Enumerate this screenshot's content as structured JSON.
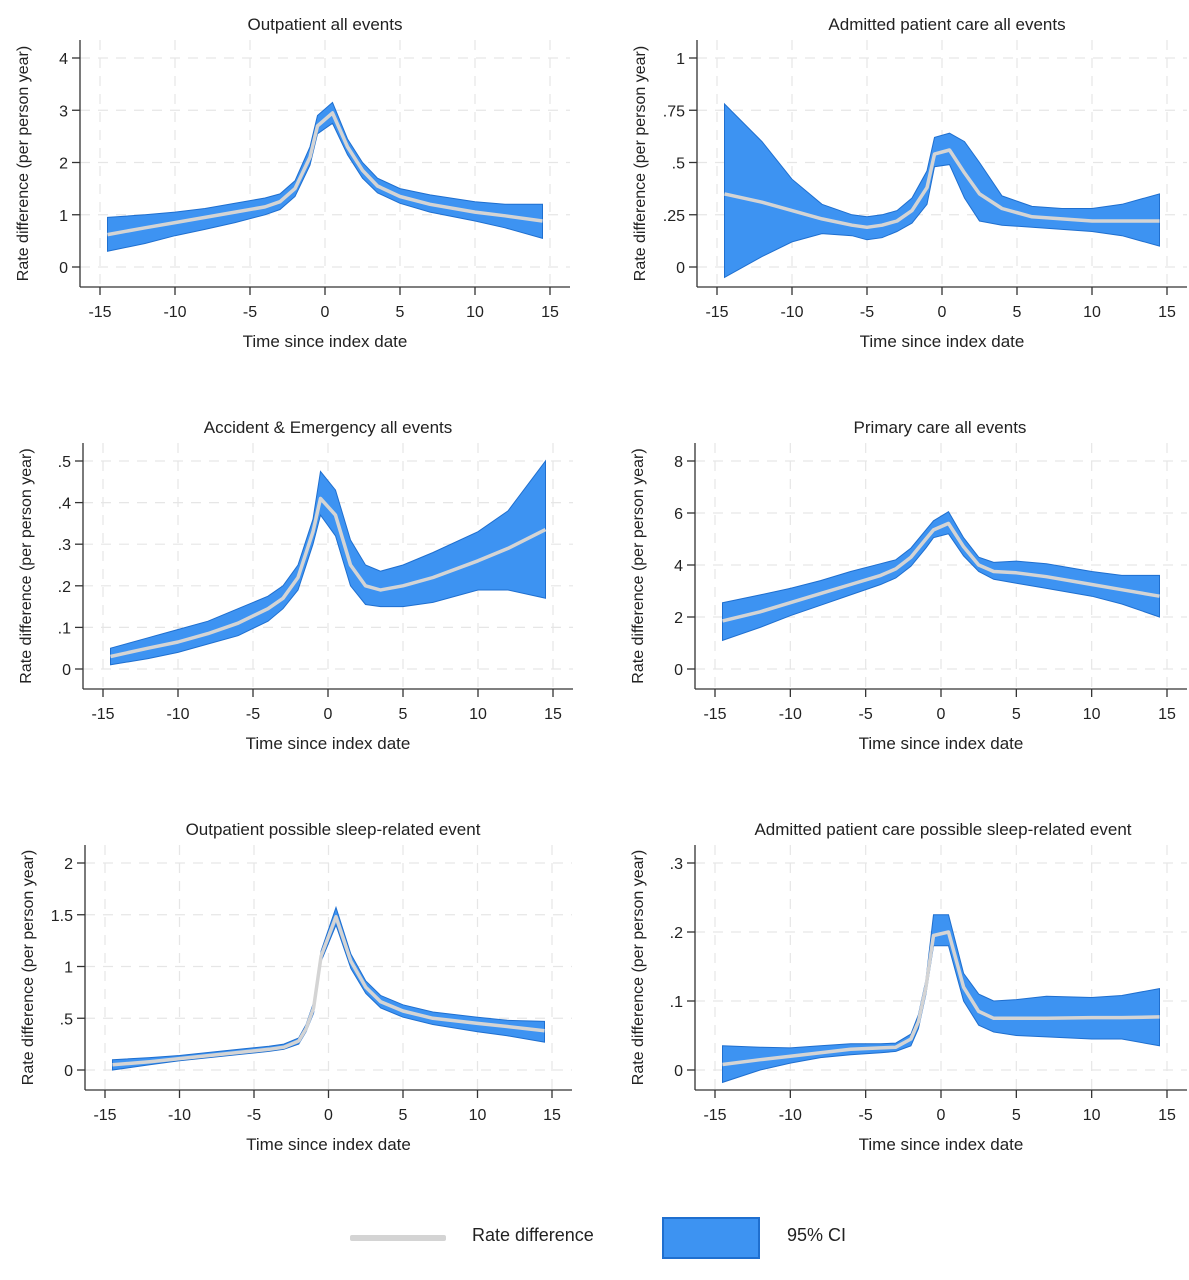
{
  "legend": {
    "line_label": "Rate difference",
    "band_label": "95% CI"
  },
  "colors": {
    "band": "#3d93f2",
    "band_edge": "#1f6fcf",
    "line": "#d4d4d4",
    "grid": "#e6e6e6"
  },
  "chart_data": [
    {
      "type": "area",
      "title": "Outpatient all events",
      "xlabel": "Time since index date",
      "ylabel": "Rate difference (per person year)",
      "xlim": [
        -15,
        15
      ],
      "ylim": [
        0,
        4
      ],
      "yticks": [
        0,
        1,
        2,
        3,
        4
      ],
      "ytick_labels": [
        "0",
        "1",
        "2",
        "3",
        "4"
      ],
      "xticks": [
        -15,
        -10,
        -5,
        0,
        5,
        10,
        15
      ],
      "xtick_labels": [
        "-15",
        "-10",
        "-5",
        "0",
        "5",
        "10",
        "15"
      ],
      "x": [
        -14.5,
        -12,
        -10,
        -8,
        -6,
        -4,
        -3,
        -2,
        -1,
        -0.5,
        0.5,
        1.5,
        2.5,
        3.5,
        5,
        7,
        10,
        12,
        14.5
      ],
      "y": [
        0.62,
        0.75,
        0.85,
        0.95,
        1.05,
        1.15,
        1.25,
        1.5,
        2.1,
        2.7,
        2.95,
        2.3,
        1.85,
        1.55,
        1.35,
        1.2,
        1.05,
        0.98,
        0.88
      ],
      "lower": [
        0.3,
        0.45,
        0.6,
        0.72,
        0.85,
        1.0,
        1.1,
        1.35,
        1.95,
        2.55,
        2.75,
        2.15,
        1.7,
        1.42,
        1.22,
        1.05,
        0.88,
        0.75,
        0.55
      ],
      "upper": [
        0.95,
        1.0,
        1.05,
        1.12,
        1.22,
        1.32,
        1.4,
        1.65,
        2.3,
        2.9,
        3.15,
        2.45,
        2.0,
        1.7,
        1.5,
        1.38,
        1.25,
        1.2,
        1.2
      ]
    },
    {
      "type": "area",
      "title": "Admitted patient care all events",
      "xlabel": "Time since index date",
      "ylabel": "Rate difference (per person year)",
      "xlim": [
        -15,
        15
      ],
      "ylim": [
        0,
        1
      ],
      "yticks": [
        0,
        0.25,
        0.5,
        0.75,
        1
      ],
      "ytick_labels": [
        "0",
        ".25",
        ".5",
        ".75",
        "1"
      ],
      "xticks": [
        -15,
        -10,
        -5,
        0,
        5,
        10,
        15
      ],
      "xtick_labels": [
        "-15",
        "-10",
        "-5",
        "0",
        "5",
        "10",
        "15"
      ],
      "x": [
        -14.5,
        -12,
        -10,
        -8,
        -6,
        -5,
        -4,
        -3,
        -2,
        -1,
        -0.5,
        0.5,
        1.5,
        2.5,
        4,
        6,
        8,
        10,
        12,
        14.5
      ],
      "y": [
        0.35,
        0.31,
        0.27,
        0.23,
        0.2,
        0.19,
        0.2,
        0.22,
        0.27,
        0.38,
        0.54,
        0.56,
        0.45,
        0.35,
        0.28,
        0.24,
        0.23,
        0.22,
        0.22,
        0.22
      ],
      "lower": [
        -0.05,
        0.05,
        0.12,
        0.16,
        0.15,
        0.13,
        0.14,
        0.17,
        0.21,
        0.3,
        0.48,
        0.49,
        0.33,
        0.22,
        0.2,
        0.19,
        0.18,
        0.17,
        0.15,
        0.1
      ],
      "upper": [
        0.78,
        0.6,
        0.42,
        0.3,
        0.25,
        0.24,
        0.25,
        0.27,
        0.33,
        0.46,
        0.62,
        0.64,
        0.6,
        0.5,
        0.34,
        0.29,
        0.28,
        0.28,
        0.3,
        0.35
      ]
    },
    {
      "type": "area",
      "title": "Accident & Emergency all events",
      "xlabel": "Time since index date",
      "ylabel": "Rate difference (per person year)",
      "xlim": [
        -15,
        15
      ],
      "ylim": [
        0,
        0.5
      ],
      "yticks": [
        0,
        0.1,
        0.2,
        0.3,
        0.4,
        0.5
      ],
      "ytick_labels": [
        "0",
        ".1",
        ".2",
        ".3",
        ".4",
        ".5"
      ],
      "xticks": [
        -15,
        -10,
        -5,
        0,
        5,
        10,
        15
      ],
      "xtick_labels": [
        "-15",
        "-10",
        "-5",
        "0",
        "5",
        "10",
        "15"
      ],
      "x": [
        -14.5,
        -12,
        -10,
        -8,
        -6,
        -4,
        -3,
        -2,
        -1,
        -0.5,
        0.5,
        1.5,
        2.5,
        3.5,
        5,
        7,
        10,
        12,
        14.5
      ],
      "y": [
        0.03,
        0.05,
        0.065,
        0.085,
        0.11,
        0.145,
        0.17,
        0.22,
        0.33,
        0.41,
        0.37,
        0.25,
        0.2,
        0.19,
        0.2,
        0.22,
        0.26,
        0.29,
        0.335
      ],
      "lower": [
        0.01,
        0.025,
        0.04,
        0.06,
        0.08,
        0.115,
        0.145,
        0.19,
        0.3,
        0.37,
        0.32,
        0.2,
        0.155,
        0.15,
        0.15,
        0.16,
        0.19,
        0.19,
        0.17
      ],
      "upper": [
        0.05,
        0.075,
        0.095,
        0.115,
        0.145,
        0.175,
        0.2,
        0.25,
        0.36,
        0.475,
        0.43,
        0.31,
        0.25,
        0.235,
        0.25,
        0.28,
        0.33,
        0.38,
        0.5
      ]
    },
    {
      "type": "area",
      "title": "Primary care all events",
      "xlabel": "Time since index date",
      "ylabel": "Rate difference (per person year)",
      "xlim": [
        -15,
        15
      ],
      "ylim": [
        0,
        8
      ],
      "yticks": [
        0,
        2,
        4,
        6,
        8
      ],
      "ytick_labels": [
        "0",
        "2",
        "4",
        "6",
        "8"
      ],
      "xticks": [
        -15,
        -10,
        -5,
        0,
        5,
        10,
        15
      ],
      "xtick_labels": [
        "-15",
        "-10",
        "-5",
        "0",
        "5",
        "10",
        "15"
      ],
      "x": [
        -14.5,
        -12,
        -10,
        -8,
        -6,
        -4,
        -3,
        -2,
        -1,
        -0.5,
        0.5,
        1.5,
        2.5,
        3.5,
        5,
        7,
        10,
        12,
        14.5
      ],
      "y": [
        1.85,
        2.2,
        2.55,
        2.9,
        3.25,
        3.6,
        3.85,
        4.3,
        5.0,
        5.35,
        5.6,
        4.7,
        4.0,
        3.75,
        3.7,
        3.55,
        3.25,
        3.05,
        2.8
      ],
      "lower": [
        1.1,
        1.6,
        2.05,
        2.45,
        2.85,
        3.25,
        3.5,
        3.95,
        4.65,
        5.05,
        5.2,
        4.35,
        3.75,
        3.45,
        3.3,
        3.1,
        2.8,
        2.5,
        2.0
      ],
      "upper": [
        2.55,
        2.85,
        3.1,
        3.4,
        3.75,
        4.05,
        4.2,
        4.65,
        5.35,
        5.7,
        6.05,
        5.05,
        4.3,
        4.1,
        4.15,
        4.05,
        3.75,
        3.6,
        3.6
      ]
    },
    {
      "type": "area",
      "title": "Outpatient possible sleep-related event",
      "xlabel": "Time since index date",
      "ylabel": "Rate difference (per person year)",
      "xlim": [
        -15,
        15
      ],
      "ylim": [
        0,
        2
      ],
      "yticks": [
        0,
        0.5,
        1,
        1.5,
        2
      ],
      "ytick_labels": [
        "0",
        ".5",
        "1",
        "1.5",
        "2"
      ],
      "xticks": [
        -15,
        -10,
        -5,
        0,
        5,
        10,
        15
      ],
      "xtick_labels": [
        "-15",
        "-10",
        "-5",
        "0",
        "5",
        "10",
        "15"
      ],
      "x": [
        -14.5,
        -12,
        -10,
        -8,
        -6,
        -4,
        -3,
        -2,
        -1.5,
        -1,
        -0.5,
        0.5,
        1.5,
        2.5,
        3.5,
        5,
        7,
        10,
        12,
        14.5
      ],
      "y": [
        0.05,
        0.08,
        0.11,
        0.14,
        0.17,
        0.2,
        0.22,
        0.28,
        0.4,
        0.6,
        1.1,
        1.48,
        1.05,
        0.8,
        0.66,
        0.57,
        0.5,
        0.45,
        0.42,
        0.38
      ],
      "lower": [
        0.0,
        0.05,
        0.09,
        0.12,
        0.15,
        0.18,
        0.2,
        0.25,
        0.37,
        0.55,
        1.05,
        1.4,
        0.98,
        0.74,
        0.6,
        0.51,
        0.44,
        0.37,
        0.33,
        0.27
      ],
      "upper": [
        0.1,
        0.12,
        0.14,
        0.17,
        0.2,
        0.23,
        0.25,
        0.31,
        0.44,
        0.65,
        1.15,
        1.57,
        1.12,
        0.86,
        0.72,
        0.63,
        0.56,
        0.51,
        0.48,
        0.47
      ]
    },
    {
      "type": "area",
      "title": "Admitted patient care possible sleep-related event",
      "xlabel": "Time since index date",
      "ylabel": "Rate difference (per person year)",
      "xlim": [
        -15,
        15
      ],
      "ylim": [
        0,
        0.3
      ],
      "yticks": [
        0,
        0.1,
        0.2,
        0.3
      ],
      "ytick_labels": [
        "0",
        ".1",
        ".2",
        ".3"
      ],
      "xticks": [
        -15,
        -10,
        -5,
        0,
        5,
        10,
        15
      ],
      "xtick_labels": [
        "-15",
        "-10",
        "-5",
        "0",
        "5",
        "10",
        "15"
      ],
      "x": [
        -14.5,
        -12,
        -10,
        -8,
        -6,
        -4,
        -3,
        -2,
        -1.5,
        -1,
        -0.5,
        0.5,
        1.5,
        2.5,
        3.5,
        5,
        7,
        10,
        12,
        14.5
      ],
      "y": [
        0.008,
        0.015,
        0.02,
        0.025,
        0.03,
        0.032,
        0.033,
        0.045,
        0.07,
        0.12,
        0.195,
        0.2,
        0.12,
        0.085,
        0.075,
        0.075,
        0.075,
        0.076,
        0.076,
        0.077
      ],
      "lower": [
        -0.018,
        0.0,
        0.01,
        0.018,
        0.022,
        0.025,
        0.027,
        0.035,
        0.06,
        0.11,
        0.18,
        0.18,
        0.1,
        0.065,
        0.055,
        0.05,
        0.048,
        0.045,
        0.045,
        0.035
      ],
      "upper": [
        0.035,
        0.033,
        0.032,
        0.035,
        0.038,
        0.038,
        0.039,
        0.052,
        0.08,
        0.13,
        0.225,
        0.225,
        0.14,
        0.11,
        0.1,
        0.102,
        0.107,
        0.105,
        0.108,
        0.118
      ]
    }
  ]
}
